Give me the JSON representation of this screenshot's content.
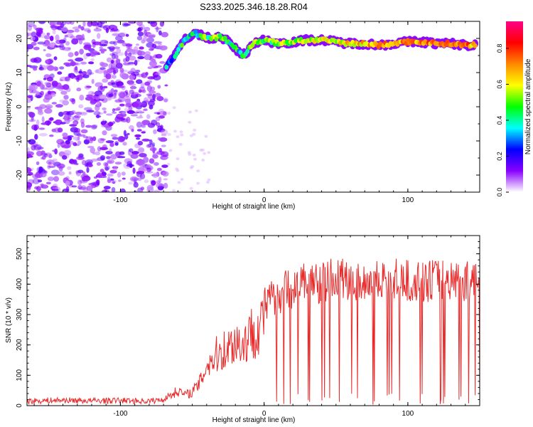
{
  "title": "S233.2025.346.18.28.R04",
  "chart_data": [
    {
      "type": "heatmap",
      "xlabel": "Height of straight line (km)",
      "ylabel": "Frequency (Hz)",
      "xlim": [
        -165,
        150
      ],
      "ylim": [
        -25,
        25
      ],
      "xticks": [
        -100,
        0,
        100
      ],
      "yticks": [
        -20,
        -10,
        0,
        10,
        20
      ],
      "colorbar": {
        "label": "Normalized spectral amplitude",
        "range": [
          0,
          0.95
        ],
        "ticks": [
          "0.0",
          "0.2",
          "0.4",
          "0.6",
          "0.8"
        ],
        "colors": [
          "#ffffff",
          "#8800ff",
          "#0000ff",
          "#00ffff",
          "#00ff00",
          "#ffff00",
          "#ff8800",
          "#ff0000",
          "#ff0088"
        ]
      },
      "noise_region_x": [
        -165,
        -68
      ],
      "ridge": {
        "x": [
          -68,
          -62,
          -55,
          -48,
          -42,
          -36,
          -30,
          -25,
          -20,
          -15,
          -12,
          -8,
          0,
          10,
          20,
          30,
          40,
          50,
          60,
          70,
          80,
          90,
          100,
          110,
          120,
          130,
          140,
          147
        ],
        "y": [
          12,
          15,
          20,
          21.5,
          20.5,
          20,
          20.5,
          19,
          17,
          15,
          16,
          18.5,
          19.5,
          18.5,
          19,
          19.5,
          19.5,
          19,
          18.5,
          18.5,
          18,
          18.5,
          19,
          19,
          18.5,
          18.5,
          18,
          18
        ],
        "amplitude": [
          0.3,
          0.35,
          0.45,
          0.4,
          0.5,
          0.55,
          0.6,
          0.5,
          0.45,
          0.4,
          0.5,
          0.6,
          0.55,
          0.6,
          0.65,
          0.7,
          0.7,
          0.75,
          0.75,
          0.8,
          0.8,
          0.85,
          0.8,
          0.85,
          0.9,
          0.9,
          0.9,
          0.85
        ]
      }
    },
    {
      "type": "line",
      "xlabel": "Height of straight line (km)",
      "ylabel": "SNR (10 * v/v)",
      "xlim": [
        -165,
        150
      ],
      "ylim": [
        0,
        560
      ],
      "xticks": [
        -100,
        0,
        100
      ],
      "yticks": [
        0,
        100,
        200,
        300,
        400,
        500
      ],
      "color": "#e82a2a",
      "series": [
        {
          "name": "SNR",
          "x": [
            -165,
            -140,
            -120,
            -100,
            -80,
            -70,
            -60,
            -55,
            -50,
            -45,
            -40,
            -35,
            -30,
            -25,
            -20,
            -15,
            -10,
            -5,
            0,
            10,
            20,
            30,
            40,
            50,
            60,
            70,
            80,
            90,
            100,
            110,
            120,
            130,
            140,
            150
          ],
          "values": [
            15,
            18,
            16,
            17,
            15,
            20,
            55,
            40,
            50,
            80,
            150,
            175,
            200,
            210,
            240,
            220,
            260,
            285,
            320,
            370,
            390,
            410,
            405,
            420,
            415,
            410,
            420,
            415,
            410,
            405,
            420,
            415,
            410,
            405
          ]
        }
      ]
    }
  ]
}
